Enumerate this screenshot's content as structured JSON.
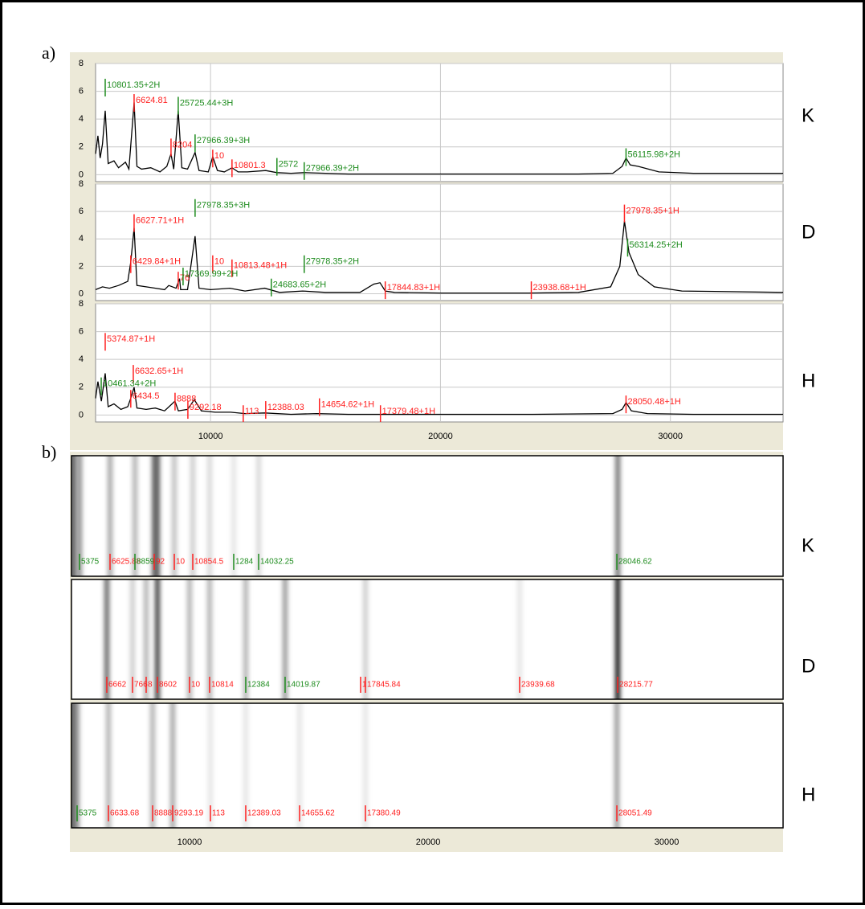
{
  "panel_labels": [
    "a)",
    "b)"
  ],
  "chart_data": [
    {
      "type": "line",
      "label": "K",
      "color": "#000000",
      "xlim": [
        5000,
        34900
      ],
      "ylim": [
        -0.5,
        8
      ],
      "xticks": [
        10000,
        20000,
        30000
      ],
      "yticks": [
        0,
        2,
        4,
        6,
        8
      ],
      "grid": true,
      "x": [
        5000,
        5100,
        5200,
        5300,
        5419,
        5550,
        5800,
        6000,
        6300,
        6450,
        6675,
        6800,
        7000,
        7400,
        7800,
        8100,
        8281,
        8400,
        8595,
        8750,
        9000,
        9328,
        9500,
        9900,
        10095,
        10300,
        10600,
        10933,
        11200,
        11600,
        12400,
        12887,
        13500,
        14074,
        16000,
        20000,
        26000,
        27500,
        27900,
        28070,
        28250,
        28600,
        29500,
        31000,
        34900
      ],
      "values": [
        1.5,
        2.8,
        1.2,
        2.2,
        4.6,
        0.8,
        1.0,
        0.5,
        0.9,
        0.4,
        5.2,
        0.6,
        0.4,
        0.5,
        0.2,
        0.6,
        1.5,
        0.4,
        4.6,
        0.5,
        0.4,
        1.6,
        0.3,
        0.2,
        1.3,
        0.3,
        0.2,
        0.5,
        0.2,
        0.2,
        0.3,
        0.15,
        0.1,
        0.15,
        0.05,
        0.05,
        0.05,
        0.1,
        0.6,
        1.2,
        0.7,
        0.6,
        0.2,
        0.1,
        0.1
      ],
      "annotations": [
        {
          "x": 5419,
          "y": 6.9,
          "label": "10801.35+2H",
          "color": "#1e8c1e"
        },
        {
          "x": 6675,
          "y": 5.8,
          "label": "6624.81",
          "color": "#ff2020"
        },
        {
          "x": 8595,
          "y": 5.6,
          "label": "25725.44+3H",
          "color": "#1e8c1e"
        },
        {
          "x": 8281,
          "y": 2.6,
          "label": "8204",
          "color": "#ff2020"
        },
        {
          "x": 9328,
          "y": 2.9,
          "label": "27966.39+3H",
          "color": "#1e8c1e"
        },
        {
          "x": 10095,
          "y": 1.8,
          "label": "10",
          "color": "#ff2020"
        },
        {
          "x": 10933,
          "y": 1.1,
          "label": "10801.3",
          "color": "#ff2020"
        },
        {
          "x": 12887,
          "y": 1.2,
          "label": "2572",
          "color": "#1e8c1e"
        },
        {
          "x": 14074,
          "y": 0.9,
          "label": "27966.39+2H",
          "color": "#1e8c1e"
        },
        {
          "x": 28070,
          "y": 1.9,
          "label": "56115.98+2H",
          "color": "#1e8c1e"
        }
      ]
    },
    {
      "type": "line",
      "label": "D",
      "color": "#000000",
      "xlim": [
        5000,
        34900
      ],
      "ylim": [
        -0.5,
        8
      ],
      "xticks": [
        10000,
        20000,
        30000
      ],
      "yticks": [
        0,
        2,
        4,
        6,
        8
      ],
      "grid": true,
      "x": [
        5000,
        5300,
        5600,
        6000,
        6400,
        6531,
        6675,
        6800,
        7200,
        7609,
        8000,
        8181,
        8500,
        8653,
        8700,
        9000,
        9328,
        9500,
        10000,
        10840,
        11500,
        12355,
        13000,
        14005,
        15000,
        16500,
        17100,
        17372,
        17600,
        18000,
        20000,
        23837,
        26000,
        27400,
        27800,
        28000,
        28200,
        28600,
        29300,
        30500,
        34900
      ],
      "values": [
        0.3,
        0.5,
        0.4,
        0.6,
        0.9,
        2.3,
        4.8,
        0.6,
        0.5,
        0.4,
        0.3,
        0.6,
        0.4,
        1.1,
        0.3,
        0.3,
        4.2,
        0.4,
        0.3,
        0.4,
        0.2,
        0.4,
        0.1,
        0.2,
        0.1,
        0.1,
        0.7,
        0.8,
        0.2,
        0.1,
        0.05,
        0.05,
        0.1,
        0.5,
        2.0,
        5.3,
        3.0,
        1.4,
        0.5,
        0.2,
        0.1
      ],
      "annotations": [
        {
          "x": 9328,
          "y": 6.9,
          "label": "27978.35+3H",
          "color": "#1e8c1e"
        },
        {
          "x": 6675,
          "y": 5.8,
          "label": "6627.71+1H",
          "color": "#ff2020"
        },
        {
          "x": 6531,
          "y": 2.8,
          "label": "6429.84+1H",
          "color": "#ff2020"
        },
        {
          "x": 10095,
          "y": 2.8,
          "label": "10",
          "color": "#ff2020"
        },
        {
          "x": 10933,
          "y": 2.5,
          "label": "10813.48+1H",
          "color": "#ff2020"
        },
        {
          "x": 14074,
          "y": 2.8,
          "label": "27978.35+2H",
          "color": "#1e8c1e"
        },
        {
          "x": 8595,
          "y": 1.6,
          "label": "76",
          "color": "#ff2020"
        },
        {
          "x": 8805,
          "y": 1.9,
          "label": "17369.99+2H",
          "color": "#1e8c1e"
        },
        {
          "x": 12643,
          "y": 1.1,
          "label": "24683.65+2H",
          "color": "#1e8c1e"
        },
        {
          "x": 17599,
          "y": 0.9,
          "label": "17844.83+1H",
          "color": "#ff2020"
        },
        {
          "x": 23950,
          "y": 0.9,
          "label": "23938.68+1H",
          "color": "#ff2020"
        },
        {
          "x": 28000,
          "y": 6.5,
          "label": "27978.35+1H",
          "color": "#ff2020"
        },
        {
          "x": 28140,
          "y": 4.0,
          "label": "56314.25+2H",
          "color": "#1e8c1e"
        }
      ]
    },
    {
      "type": "line",
      "label": "H",
      "color": "#000000",
      "xlim": [
        5000,
        34900
      ],
      "ylim": [
        -0.5,
        8
      ],
      "xticks": [
        10000,
        20000,
        30000
      ],
      "yticks": [
        0,
        2,
        4,
        6,
        8
      ],
      "grid": true,
      "x": [
        5000,
        5100,
        5250,
        5419,
        5550,
        5800,
        6100,
        6400,
        6531,
        6675,
        6800,
        7200,
        7600,
        8000,
        8451,
        8600,
        9000,
        9293,
        9600,
        10200,
        10875,
        11500,
        12355,
        13500,
        14611,
        16000,
        17372,
        19000,
        24000,
        27500,
        27900,
        28070,
        28300,
        29000,
        31000,
        34900
      ],
      "values": [
        1.2,
        2.4,
        1.0,
        3.0,
        0.6,
        0.8,
        0.4,
        0.6,
        1.2,
        2.0,
        0.5,
        0.4,
        0.5,
        0.3,
        1.0,
        0.3,
        0.4,
        1.1,
        0.3,
        0.2,
        0.2,
        0.1,
        0.15,
        0.05,
        0.1,
        0.05,
        0.05,
        0.05,
        0.05,
        0.1,
        0.4,
        0.9,
        0.3,
        0.1,
        0.05,
        0.05
      ],
      "annotations": [
        {
          "x": 5419,
          "y": 5.9,
          "label": "5374.87+1H",
          "color": "#ff2020"
        },
        {
          "x": 6640,
          "y": 3.6,
          "label": "6632.65+1H",
          "color": "#ff2020"
        },
        {
          "x": 5245,
          "y": 2.7,
          "label": "10461.34+2H",
          "color": "#1e8c1e"
        },
        {
          "x": 6531,
          "y": 1.8,
          "label": "6434.5",
          "color": "#ff2020"
        },
        {
          "x": 8456,
          "y": 1.6,
          "label": "8888",
          "color": "#ff2020"
        },
        {
          "x": 9014,
          "y": 1.0,
          "label": "9292.18",
          "color": "#ff2020"
        },
        {
          "x": 11422,
          "y": 0.7,
          "label": "113",
          "color": "#ff2020"
        },
        {
          "x": 12399,
          "y": 1.0,
          "label": "12388.03",
          "color": "#ff2020"
        },
        {
          "x": 14737,
          "y": 1.2,
          "label": "14654.62+1H",
          "color": "#ff2020"
        },
        {
          "x": 17389,
          "y": 0.7,
          "label": "17379.48+1H",
          "color": "#ff2020"
        },
        {
          "x": 28070,
          "y": 1.4,
          "label": "28050.48+1H",
          "color": "#ff2020"
        }
      ]
    },
    {
      "type": "gel",
      "label": "K",
      "color": "#000000",
      "xlim": [
        5050,
        34880
      ],
      "bands": [
        {
          "x": 5120,
          "intensity": 0.75
        },
        {
          "x": 5387,
          "intensity": 0.45
        },
        {
          "x": 6666,
          "intensity": 0.35
        },
        {
          "x": 7710,
          "intensity": 0.3
        },
        {
          "x": 8518,
          "intensity": 0.55
        },
        {
          "x": 8653,
          "intensity": 0.6
        },
        {
          "x": 9360,
          "intensity": 0.25
        },
        {
          "x": 10134,
          "intensity": 0.2
        },
        {
          "x": 10840,
          "intensity": 0.15
        },
        {
          "x": 11851,
          "intensity": 0.1
        },
        {
          "x": 12895,
          "intensity": 0.15
        },
        {
          "x": 27950,
          "intensity": 0.55
        }
      ],
      "annotations": [
        {
          "x": 5387,
          "label": "5375",
          "color": "#1e8c1e"
        },
        {
          "x": 6666,
          "label": "6625.88",
          "color": "#ff2020"
        },
        {
          "x": 7710,
          "label": "8859",
          "color": "#1e8c1e"
        },
        {
          "x": 8518,
          "label": "92",
          "color": "#ff2020"
        },
        {
          "x": 9360,
          "label": "10",
          "color": "#ff2020"
        },
        {
          "x": 10134,
          "label": "10854.5",
          "color": "#ff2020"
        },
        {
          "x": 11851,
          "label": "1284",
          "color": "#1e8c1e"
        },
        {
          "x": 12895,
          "label": "14032.25",
          "color": "#1e8c1e"
        },
        {
          "x": 27912,
          "label": "28046.62",
          "color": "#1e8c1e"
        }
      ]
    },
    {
      "type": "gel",
      "label": "D",
      "color": "#000000",
      "xlim": [
        5050,
        34880
      ],
      "bands": [
        {
          "x": 6531,
          "intensity": 0.6
        },
        {
          "x": 7609,
          "intensity": 0.2
        },
        {
          "x": 8181,
          "intensity": 0.3
        },
        {
          "x": 8653,
          "intensity": 0.75
        },
        {
          "x": 9999,
          "intensity": 0.3
        },
        {
          "x": 10840,
          "intensity": 0.3
        },
        {
          "x": 12355,
          "intensity": 0.3
        },
        {
          "x": 14005,
          "intensity": 0.4
        },
        {
          "x": 17372,
          "intensity": 0.2
        },
        {
          "x": 23837,
          "intensity": 0.1
        },
        {
          "x": 27946,
          "intensity": 0.95
        }
      ],
      "annotations": [
        {
          "x": 6531,
          "label": "6662",
          "color": "#ff2020"
        },
        {
          "x": 7609,
          "label": "766",
          "color": "#ff2020"
        },
        {
          "x": 8181,
          "label": "8",
          "color": "#ff2020"
        },
        {
          "x": 8653,
          "label": "8602",
          "color": "#ff2020"
        },
        {
          "x": 9999,
          "label": "10",
          "color": "#ff2020"
        },
        {
          "x": 10840,
          "label": "10814",
          "color": "#ff2020"
        },
        {
          "x": 12355,
          "label": "12384",
          "color": "#1e8c1e"
        },
        {
          "x": 14005,
          "label": "14019.87",
          "color": "#1e8c1e"
        },
        {
          "x": 17170,
          "label": "1",
          "color": "#ff2020"
        },
        {
          "x": 17372,
          "label": "17845.84",
          "color": "#ff2020"
        },
        {
          "x": 23837,
          "label": "23939.68",
          "color": "#ff2020"
        },
        {
          "x": 27946,
          "label": "28215.77",
          "color": "#ff2020"
        }
      ]
    },
    {
      "type": "gel",
      "label": "H",
      "color": "#000000",
      "xlim": [
        5050,
        34880
      ],
      "xticks": [
        10000,
        20000,
        30000
      ],
      "bands": [
        {
          "x": 5100,
          "intensity": 0.7
        },
        {
          "x": 5286,
          "intensity": 0.4
        },
        {
          "x": 6599,
          "intensity": 0.3
        },
        {
          "x": 8451,
          "intensity": 0.3
        },
        {
          "x": 9293,
          "intensity": 0.35
        },
        {
          "x": 10875,
          "intensity": 0.1
        },
        {
          "x": 12355,
          "intensity": 0.1
        },
        {
          "x": 14611,
          "intensity": 0.1
        },
        {
          "x": 17372,
          "intensity": 0.1
        },
        {
          "x": 27912,
          "intensity": 0.4
        }
      ],
      "annotations": [
        {
          "x": 5286,
          "label": "5375",
          "color": "#1e8c1e"
        },
        {
          "x": 6599,
          "label": "6633.68",
          "color": "#ff2020"
        },
        {
          "x": 8451,
          "label": "8888",
          "color": "#ff2020"
        },
        {
          "x": 9293,
          "label": "9293.19",
          "color": "#ff2020"
        },
        {
          "x": 10875,
          "label": "113",
          "color": "#ff2020"
        },
        {
          "x": 12355,
          "label": "12389.03",
          "color": "#ff2020"
        },
        {
          "x": 14611,
          "label": "14655.62",
          "color": "#ff2020"
        },
        {
          "x": 17372,
          "label": "17380.49",
          "color": "#ff2020"
        },
        {
          "x": 27912,
          "label": "28051.49",
          "color": "#ff2020"
        }
      ]
    }
  ]
}
